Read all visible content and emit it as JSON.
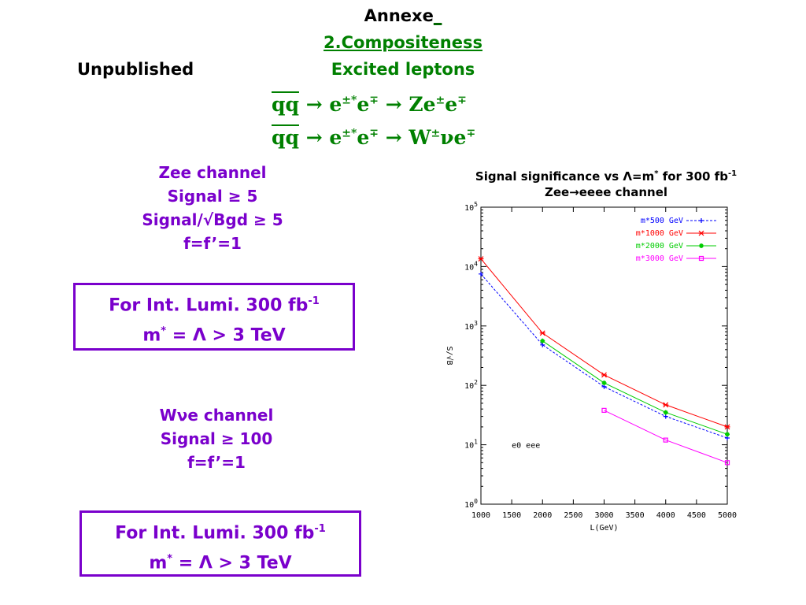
{
  "header": {
    "annexe": "Annexe",
    "annexe_cursor": "_",
    "section": "2.Compositeness",
    "status": "Unpublished",
    "subtitle": "Excited leptons"
  },
  "reactions": [
    {
      "lhs": "qq",
      "arrow": "→",
      "mid": "e",
      "mid_sup": "±*",
      "mid2": "e",
      "mid2_sup": "∓",
      "arrow2": "→",
      "final": "Ze",
      "final_sup": "±",
      "final2": "e",
      "final2_sup": "∓"
    },
    {
      "lhs": "qq",
      "arrow": "→",
      "mid": "e",
      "mid_sup": "±*",
      "mid2": "e",
      "mid2_sup": "∓",
      "arrow2": "→",
      "final": "W",
      "final_sup": "±",
      "final2": "νe",
      "final2_sup": "∓"
    }
  ],
  "zee": {
    "line1": "Zee channel",
    "line2": "Signal ≥ 5",
    "line3": "Signal/√Bgd ≥ 5",
    "line4": "f=f’=1"
  },
  "wne": {
    "line1": "Wνe channel",
    "line2": "Signal ≥ 100",
    "line3": "f=f’=1"
  },
  "lumi_box_1": {
    "line1": "For Int. Lumi. 300 fb",
    "line1_sup": "-1",
    "line2_a": "m",
    "line2_sup": "*",
    "line2_b": " = Λ > 3 TeV"
  },
  "lumi_box_2": {
    "line1": "For Int. Lumi. 300 fb",
    "line1_sup": "-1",
    "line2_a": "m",
    "line2_sup": "*",
    "line2_b": " = Λ > 3 TeV"
  },
  "chart_title": {
    "line1_a": "Signal significance vs Λ=m",
    "line1_sup": "*",
    "line1_b": " for 300 fb",
    "line1_sup2": "-1",
    "line2": "Zee→eeee channel"
  },
  "chart_data": {
    "type": "line",
    "x_scale": "linear",
    "y_scale": "log",
    "xlabel": "L(GeV)",
    "ylabel": "S/√B",
    "xlim": [
      1000,
      5000
    ],
    "ylim_exponents": [
      0,
      5
    ],
    "x_ticks": [
      "1000",
      "1500",
      "2000",
      "2500",
      "3000",
      "3500",
      "4000",
      "4500",
      "5000"
    ],
    "y_ticks": [
      {
        "base": "10",
        "exp": "0"
      },
      {
        "base": "10",
        "exp": "1"
      },
      {
        "base": "10",
        "exp": "2"
      },
      {
        "base": "10",
        "exp": "3"
      },
      {
        "base": "10",
        "exp": "4"
      },
      {
        "base": "10",
        "exp": "5"
      }
    ],
    "annotation": "e0 eee",
    "grid": false,
    "legend_position": "top-right",
    "series": [
      {
        "name": "m*500 GeV",
        "color": "#0000ff",
        "dash": "3,2",
        "marker": "plus",
        "x": [
          1000,
          2000,
          3000,
          4000,
          5000
        ],
        "y": [
          7500,
          480,
          95,
          30,
          13
        ]
      },
      {
        "name": "m*1000 GeV",
        "color": "#ff0000",
        "dash": "",
        "marker": "cross",
        "x": [
          1000,
          2000,
          3000,
          4000,
          5000
        ],
        "y": [
          13500,
          760,
          150,
          47,
          20
        ]
      },
      {
        "name": "m*2000 GeV",
        "color": "#00cc00",
        "dash": "",
        "marker": "star",
        "x": [
          2000,
          3000,
          4000,
          5000
        ],
        "y": [
          560,
          110,
          35,
          15
        ]
      },
      {
        "name": "m*3000 GeV",
        "color": "#ff00ff",
        "dash": "",
        "marker": "square",
        "x": [
          3000,
          4000,
          5000
        ],
        "y": [
          38,
          12,
          5
        ]
      }
    ]
  }
}
